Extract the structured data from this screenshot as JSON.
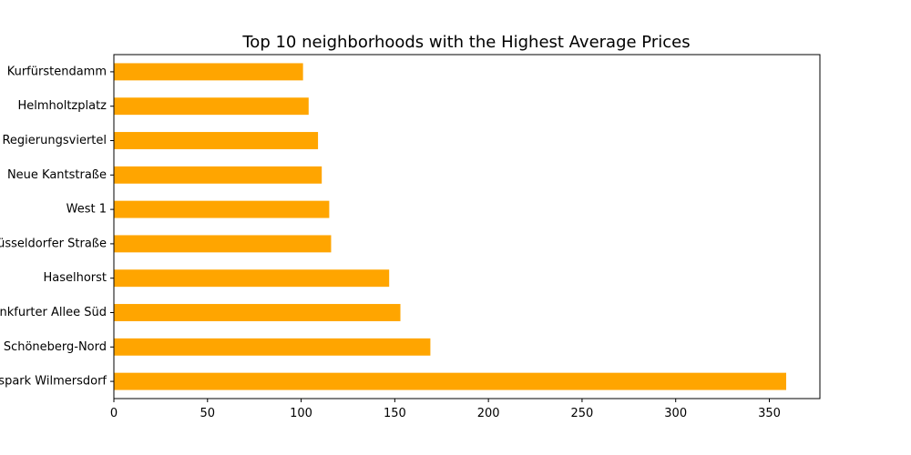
{
  "chart_data": {
    "type": "bar",
    "orientation": "horizontal",
    "title": "Top 10 neighborhoods with the Highest Average Prices",
    "xlabel": "",
    "ylabel": "",
    "categories": [
      "Kurfürstendamm",
      "Helmholtzplatz",
      "Regierungsviertel",
      "Neue Kantstraße",
      "West 1",
      "Düsseldorfer Straße",
      "Haselhorst",
      "Frankfurter Allee Süd",
      "Schöneberg-Nord",
      "Volkspark Wilmersdorf"
    ],
    "values": [
      101,
      104,
      109,
      111,
      115,
      116,
      147,
      153,
      169,
      359
    ],
    "xlim": [
      0,
      377
    ],
    "xticks": [
      0,
      50,
      100,
      150,
      200,
      250,
      300,
      350
    ],
    "grid": false,
    "bar_color": "#ffa500"
  }
}
